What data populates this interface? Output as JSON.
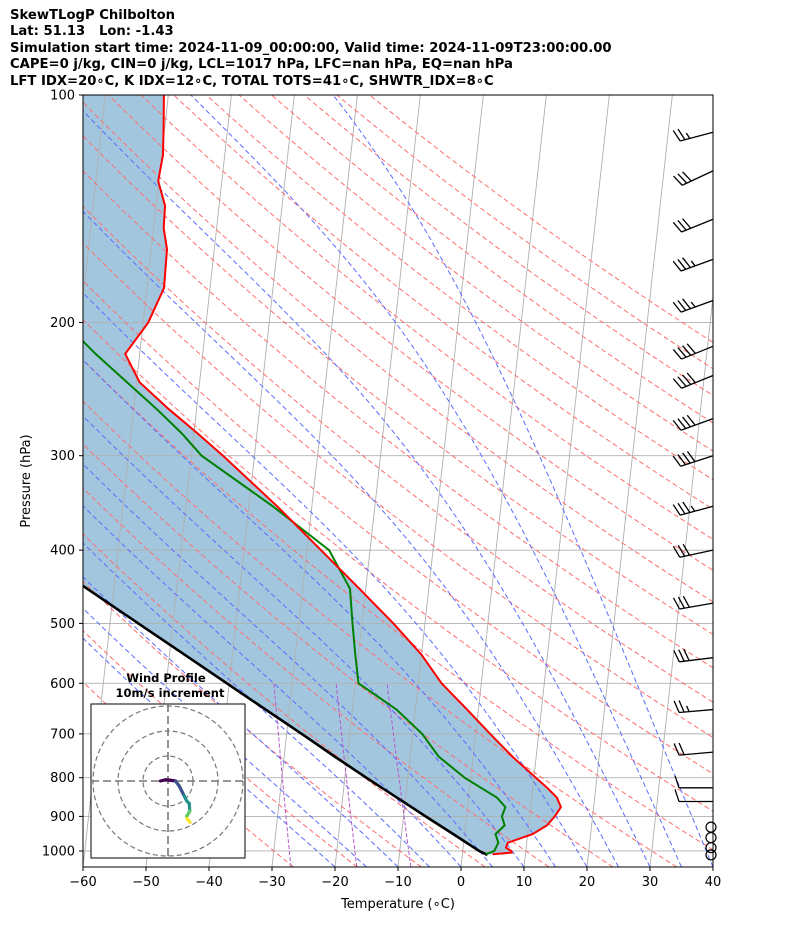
{
  "header": {
    "line1": "SkewTLogP Chilbolton",
    "line2": "Lat: 51.13   Lon: -1.43",
    "line3": "Simulation start time: 2024-11-09_00:00:00, Valid time: 2024-11-09T23:00:00.00",
    "line4": "CAPE=0 j/kg, CIN=0 j/kg, LCL=1017 hPa, LFC=nan hPa, EQ=nan hPa",
    "line5": "LFT IDX=20∘C, K IDX=12∘C, TOTAL TOTS=41∘C, SHWTR_IDX=8∘C"
  },
  "colors": {
    "temperature": "#ff0000",
    "dewpoint": "#008000",
    "parcel": "#000000",
    "shading": "#a3c6df",
    "isotherms": "#b0b0b0",
    "dry_adiabats": "#ff6e6e",
    "moist_adiabats": "#5b6cff",
    "mixing_ratio": "#b35ac8",
    "barbs": "#000000"
  },
  "chart_data": {
    "type": "line",
    "subtype": "skew-t log-p",
    "xlabel": "Temperature (∘C)",
    "ylabel": "Pressure (hPa)",
    "xlim": [
      -60,
      40
    ],
    "ylim": [
      1050,
      100
    ],
    "y_scale": "log",
    "x_ticks": [
      -60,
      -50,
      -40,
      -30,
      -20,
      -10,
      0,
      10,
      20,
      30,
      40
    ],
    "y_ticks": [
      1000,
      900,
      800,
      700,
      600,
      500,
      400,
      300,
      200,
      100
    ],
    "skew_factor": 36.3,
    "grid": true,
    "series": [
      {
        "key": "temperature",
        "pressure": [
          1010,
          1005,
          1000,
          990,
          975,
          950,
          925,
          900,
          875,
          850,
          825,
          800,
          750,
          700,
          650,
          600,
          550,
          500,
          450,
          400,
          350,
          300,
          280,
          260,
          240,
          220,
          200,
          180,
          160,
          150,
          140,
          130,
          120,
          110,
          100
        ],
        "values": [
          4.8,
          7.8,
          7.7,
          6.8,
          7.0,
          10.8,
          12.9,
          14.0,
          14.8,
          14.0,
          12.3,
          10.3,
          6.2,
          2.3,
          -1.8,
          -6.3,
          -10.0,
          -15.0,
          -21.0,
          -27.8,
          -35.5,
          -45.0,
          -49.5,
          -54.5,
          -59.5,
          -62.3,
          -59.2,
          -57.3,
          -57.5,
          -58.4,
          -58.6,
          -60.1,
          -59.8,
          -60.2,
          -60.7
        ]
      },
      {
        "key": "dewpoint",
        "pressure": [
          1010,
          1000,
          975,
          950,
          925,
          900,
          875,
          850,
          800,
          750,
          700,
          650,
          600,
          550,
          500,
          450,
          400,
          350,
          300,
          280,
          260,
          240,
          220,
          200,
          180,
          160,
          150,
          140,
          130,
          120,
          110,
          100
        ],
        "values": [
          3.7,
          5.0,
          5.5,
          4.9,
          6.2,
          5.6,
          6.0,
          4.5,
          -1.0,
          -5.5,
          -8.5,
          -13.0,
          -19.5,
          -20.5,
          -21.5,
          -22.5,
          -26.5,
          -36.2,
          -48.4,
          -52.0,
          -56.4,
          -61.5,
          -67.0,
          -72.5,
          -78.2,
          -85.4,
          -84.0,
          -83.2,
          -82.5,
          -81.8,
          -81.2,
          -80.7
        ]
      },
      {
        "key": "parcel",
        "pressure": [
          1012,
          1000,
          950,
          900,
          850,
          800,
          750,
          700,
          650,
          600,
          550,
          500,
          450,
          400,
          350,
          300,
          250,
          200,
          150,
          100
        ],
        "values": [
          4.0,
          2.6,
          -1.8,
          -6.5,
          -11.4,
          -16.6,
          -22.0,
          -27.6,
          -33.8,
          -40.4,
          -47.6,
          -55.5,
          -64.2,
          -73.8,
          -84.9,
          -97.5,
          -111.5,
          -128.6,
          -150.9,
          -183.2
        ]
      }
    ],
    "wind_barbs": {
      "pressure": [
        1012,
        990,
        960,
        930,
        860,
        825,
        740,
        650,
        555,
        470,
        400,
        350,
        300,
        268,
        235,
        215,
        187,
        165,
        146,
        126,
        112
      ],
      "direction_deg": [
        0,
        0,
        0,
        0,
        270,
        270,
        265,
        265,
        263,
        260,
        258,
        255,
        252,
        250,
        248,
        248,
        250,
        250,
        248,
        245,
        255
      ],
      "speed_kt": [
        0,
        0,
        0,
        0,
        10,
        12,
        20,
        25,
        30,
        30,
        30,
        35,
        40,
        40,
        40,
        40,
        35,
        35,
        30,
        30,
        25
      ]
    },
    "hodograph": {
      "title": "Wind Profile",
      "subtitle": "10m/s increment",
      "rings_ms": [
        10,
        20,
        30
      ],
      "u": [
        -3,
        -1,
        1,
        3,
        4.5,
        5.5,
        6.5,
        7.5,
        8.5,
        8.7,
        8.2,
        7.5,
        7.6,
        8.4,
        8.8
      ],
      "v": [
        0,
        0.5,
        0.3,
        0,
        -2,
        -4,
        -6,
        -8,
        -9,
        -12,
        -13,
        -14,
        -15,
        -16,
        -16.5
      ]
    }
  }
}
